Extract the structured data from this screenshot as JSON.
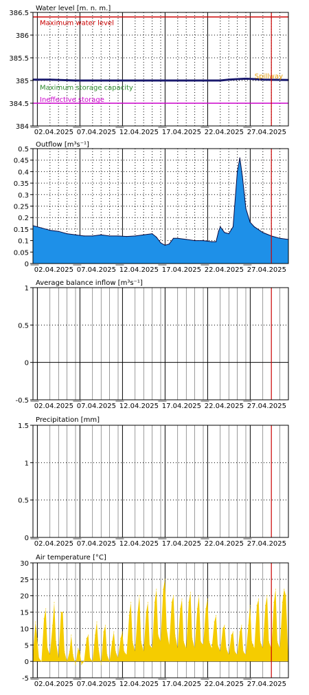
{
  "page": {
    "width": 450,
    "height": 1010
  },
  "x_axis": {
    "start_day": 1,
    "end_day": 31,
    "tick_labels": [
      "02.04.2025",
      "07.04.2025",
      "12.04.2025",
      "17.04.2025",
      "22.04.2025",
      "27.04.2025"
    ],
    "tick_days": [
      2,
      7,
      12,
      17,
      22,
      27
    ],
    "marker_day": 29,
    "marker_color": "#cc0000",
    "minor_tick_days": [
      3,
      4,
      5,
      6,
      8,
      9,
      10,
      11,
      13,
      14,
      15,
      16,
      18,
      19,
      20,
      21,
      23,
      24,
      25,
      26,
      28,
      29,
      30
    ]
  },
  "chart_data": [
    {
      "type": "line",
      "title": "Water level [m. n. m.]",
      "ylim": [
        384,
        386.5
      ],
      "yticks": [
        "384",
        "384.5",
        "385",
        "385.5",
        "386",
        "386.5"
      ],
      "ytick_values": [
        384,
        384.5,
        385,
        385.5,
        386,
        386.5
      ],
      "series": [
        {
          "name": "Water level",
          "color": "#1a1a6e",
          "x": [
            1,
            3,
            6,
            12,
            17,
            20,
            23,
            24,
            25,
            26,
            27,
            28,
            31
          ],
          "values": [
            385.02,
            385.02,
            385.0,
            385.0,
            385.0,
            385.0,
            385.0,
            385.02,
            385.03,
            385.04,
            385.03,
            385.02,
            385.01
          ]
        }
      ],
      "reference_lines": [
        {
          "label": "Maximum water level",
          "value": 386.4,
          "color": "#cc0000"
        },
        {
          "label": "Spillway",
          "value": 385.0,
          "color": "#e69900"
        },
        {
          "label": "Maximum storage capacity",
          "value": 384.98,
          "color": "#2e8b2e"
        },
        {
          "label": "Ineffective storage",
          "value": 384.5,
          "color": "#cc00cc"
        }
      ]
    },
    {
      "type": "area",
      "title": "Outflow [m³s⁻¹]",
      "ylim": [
        0,
        0.5
      ],
      "yticks": [
        "0",
        "0.05",
        "0.1",
        "0.15",
        "0.2",
        "0.25",
        "0.3",
        "0.35",
        "0.4",
        "0.45",
        "0.5"
      ],
      "ytick_values": [
        0,
        0.05,
        0.1,
        0.15,
        0.2,
        0.25,
        0.3,
        0.35,
        0.4,
        0.45,
        0.5
      ],
      "series": [
        {
          "name": "Outflow",
          "fill": "#1e90e8",
          "stroke": "#0a0a40",
          "x": [
            1,
            2,
            3,
            4,
            5,
            6,
            7,
            8,
            9,
            10,
            11,
            12,
            13,
            14,
            15,
            15.5,
            16,
            16.5,
            17,
            17.5,
            18,
            19,
            20,
            21,
            22,
            22.5,
            22.8,
            23,
            23.5,
            24,
            24.5,
            25,
            25.3,
            25.6,
            26,
            26.5,
            27,
            28,
            29,
            30,
            31
          ],
          "values": [
            0.165,
            0.155,
            0.145,
            0.14,
            0.13,
            0.125,
            0.12,
            0.12,
            0.125,
            0.12,
            0.12,
            0.118,
            0.12,
            0.125,
            0.13,
            0.115,
            0.09,
            0.08,
            0.085,
            0.11,
            0.11,
            0.105,
            0.1,
            0.1,
            0.095,
            0.095,
            0.14,
            0.16,
            0.135,
            0.13,
            0.16,
            0.4,
            0.46,
            0.38,
            0.24,
            0.18,
            0.16,
            0.135,
            0.12,
            0.11,
            0.105
          ]
        }
      ]
    },
    {
      "type": "line",
      "title": "Average balance inflow  [m³s⁻¹]",
      "ylim": [
        -0.5,
        1
      ],
      "yticks": [
        "-0.5",
        "0",
        "0.5",
        "1"
      ],
      "ytick_values": [
        -0.5,
        0,
        0.5,
        1
      ],
      "series": []
    },
    {
      "type": "bar",
      "title": "Precipitation [mm]",
      "ylim": [
        0,
        1.5
      ],
      "yticks": [
        "0",
        "0.5",
        "1",
        "1.5"
      ],
      "ytick_values": [
        0,
        0.5,
        1,
        1.5
      ],
      "series": []
    },
    {
      "type": "area",
      "title": "Air temperature [°C]",
      "ylim": [
        -5,
        30
      ],
      "yticks": [
        "-5",
        "0",
        "5",
        "10",
        "15",
        "20",
        "25",
        "30"
      ],
      "ytick_values": [
        -5,
        0,
        5,
        10,
        15,
        20,
        25,
        30
      ],
      "series": [
        {
          "name": "Air temperature",
          "fill": "#f5cc00",
          "x": [
            1,
            1.3,
            1.5,
            1.7,
            2,
            2.3,
            2.5,
            2.7,
            3,
            3.3,
            3.5,
            3.7,
            4,
            4.3,
            4.5,
            4.7,
            5,
            5.3,
            5.5,
            5.7,
            6,
            6.3,
            6.5,
            6.7,
            7,
            7.3,
            7.5,
            7.7,
            8,
            8.3,
            8.5,
            8.7,
            9,
            9.3,
            9.5,
            9.7,
            10,
            10.3,
            10.5,
            10.7,
            11,
            11.3,
            11.5,
            11.7,
            12,
            12.3,
            12.5,
            12.7,
            13,
            13.3,
            13.5,
            13.7,
            14,
            14.3,
            14.5,
            14.7,
            15,
            15.3,
            15.5,
            15.7,
            16,
            16.3,
            16.5,
            16.7,
            17,
            17.3,
            17.5,
            17.7,
            18,
            18.3,
            18.5,
            18.7,
            19,
            19.3,
            19.5,
            19.7,
            20,
            20.3,
            20.5,
            20.7,
            21,
            21.3,
            21.5,
            21.7,
            22,
            22.3,
            22.5,
            22.7,
            23,
            23.3,
            23.5,
            23.7,
            24,
            24.3,
            24.5,
            24.7,
            25,
            25.3,
            25.5,
            25.7,
            26,
            26.3,
            26.5,
            26.7,
            27,
            27.3,
            27.5,
            27.7,
            28,
            28.3,
            28.5,
            28.7,
            29,
            29.3,
            29.5,
            29.7,
            30,
            30.3,
            30.5,
            30.7,
            31
          ],
          "values": [
            2,
            12,
            7,
            1,
            0,
            13,
            16,
            4,
            2,
            11,
            18,
            6,
            1,
            15,
            15,
            3,
            0,
            3,
            8,
            2,
            -1,
            4,
            3,
            -1,
            0,
            7,
            8,
            1,
            0,
            8,
            12,
            4,
            -1,
            9,
            11,
            2,
            0,
            6,
            9,
            3,
            1,
            7,
            9,
            3,
            2,
            14,
            18,
            6,
            3,
            15,
            20,
            6,
            3,
            15,
            18,
            5,
            4,
            18,
            22,
            8,
            6,
            22,
            25,
            10,
            5,
            18,
            20,
            8,
            4,
            16,
            19,
            6,
            4,
            18,
            21,
            7,
            4,
            16,
            20,
            6,
            5,
            16,
            19,
            6,
            4,
            12,
            14,
            5,
            3,
            10,
            11,
            4,
            2,
            8,
            9,
            3,
            2,
            9,
            11,
            3,
            2,
            11,
            17,
            6,
            4,
            17,
            19,
            6,
            4,
            17,
            20,
            6,
            4,
            18,
            22,
            6,
            4,
            18,
            22,
            20,
            0
          ]
        }
      ]
    }
  ]
}
